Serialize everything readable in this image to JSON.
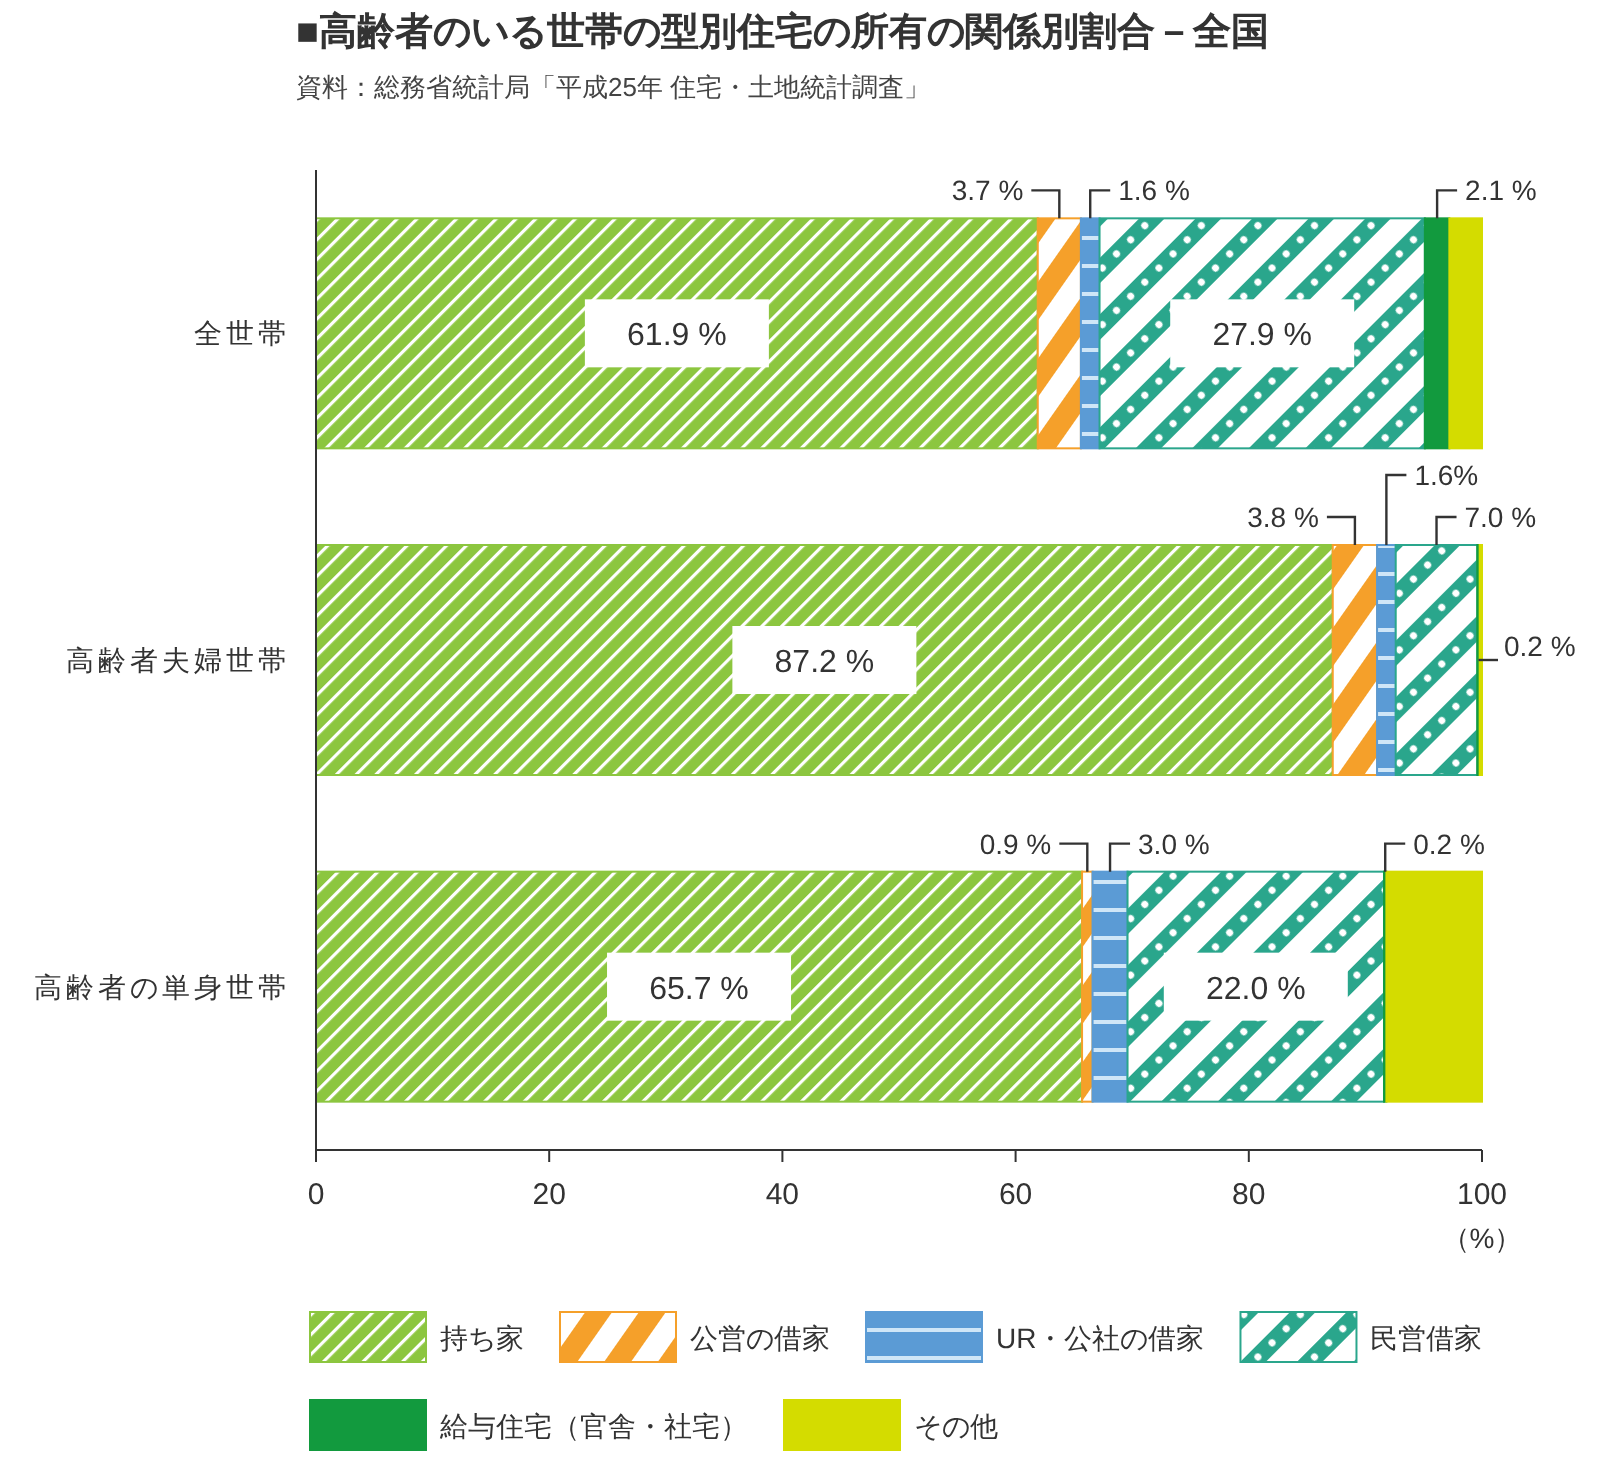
{
  "chart_data": {
    "type": "bar",
    "orientation": "horizontal",
    "stacked": true,
    "title": "■高齢者のいる世帯の型別住宅の所有の関係別割合－全国",
    "subtitle": "資料：総務省統計局「平成25年 住宅・土地統計調査」",
    "xlabel": "（%）",
    "categories": [
      "全世帯",
      "高齢者夫婦世帯",
      "高齢者の単身世帯"
    ],
    "series": [
      {
        "name": "持ち家",
        "color": "#8cc63f",
        "values": [
          61.9,
          87.2,
          65.7
        ],
        "value_labels": [
          "61.9 %",
          "87.2 %",
          "65.7 %"
        ]
      },
      {
        "name": "公営の借家",
        "color": "#f5a02a",
        "values": [
          3.7,
          3.8,
          0.9
        ],
        "value_labels": [
          "3.7 %",
          "3.8 %",
          "0.9 %"
        ]
      },
      {
        "name": "UR・公社の借家",
        "color": "#5b9bd5",
        "values": [
          1.6,
          1.6,
          3.0
        ],
        "value_labels": [
          "1.6 %",
          "1.6%",
          "3.0 %"
        ]
      },
      {
        "name": "民営借家",
        "color": "#2aa68c",
        "values": [
          27.9,
          7.0,
          22.0
        ],
        "value_labels": [
          "27.9 %",
          "7.0 %",
          "22.0 %"
        ]
      },
      {
        "name": "給与住宅（官舎・社宅）",
        "color": "#129a3e",
        "values": [
          2.1,
          0.2,
          0.2
        ],
        "value_labels": [
          "2.1 %",
          "0.2 %",
          "0.2 %"
        ]
      },
      {
        "name": "その他",
        "color": "#d4dc00",
        "values": [
          2.8,
          0.2,
          8.2
        ],
        "value_labels": [
          null,
          null,
          null
        ]
      }
    ],
    "xlim": [
      0,
      100
    ],
    "xticks": [
      0,
      20,
      40,
      60,
      80,
      100
    ],
    "legend": "bottom"
  }
}
